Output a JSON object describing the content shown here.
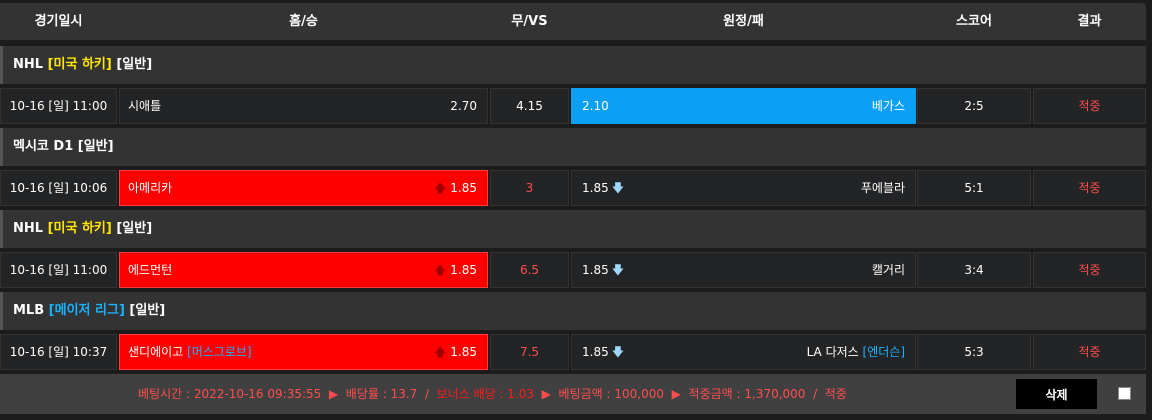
{
  "header": {
    "date": "경기일시",
    "home": "홈/승",
    "draw": "무/VS",
    "away": "원정/패",
    "score": "스코어",
    "result": "결과"
  },
  "colors": {
    "red": "#ff0000",
    "blue": "#0ba0f5",
    "yellow": "#ffe600",
    "cyan": "#1ab2ff",
    "result": "#ff4d4d"
  },
  "matches": [
    {
      "league": {
        "name": "NHL",
        "tag": "[미국 하키]",
        "tag_color": "#ffe600",
        "type": "[일반]"
      },
      "date": "10-16 [일] 11:00",
      "home": "시애틀",
      "home_tag": "",
      "home_odds": "2.70",
      "draw": "4.15",
      "away_odds": "2.10",
      "away": "베가스",
      "away_tag": "",
      "score": "2:5",
      "result": "적중",
      "selected": "away"
    },
    {
      "league": {
        "name": "멕시코 D1",
        "tag": "",
        "tag_color": "",
        "type": "[일반]"
      },
      "date": "10-16 [일] 10:06",
      "home": "아메리카",
      "home_tag": "",
      "home_odds": "1.85",
      "draw": "3",
      "away_odds": "1.85",
      "away": "푸에블라",
      "away_tag": "",
      "score": "5:1",
      "result": "적중",
      "selected": "home"
    },
    {
      "league": {
        "name": "NHL",
        "tag": "[미국 하키]",
        "tag_color": "#ffe600",
        "type": "[일반]"
      },
      "date": "10-16 [일] 11:00",
      "home": "에드먼턴",
      "home_tag": "",
      "home_odds": "1.85",
      "draw": "6.5",
      "away_odds": "1.85",
      "away": "캘거리",
      "away_tag": "",
      "score": "3:4",
      "result": "적중",
      "selected": "home"
    },
    {
      "league": {
        "name": "MLB",
        "tag": "[메이저 리그]",
        "tag_color": "#1ab2ff",
        "type": "[일반]"
      },
      "date": "10-16 [일] 10:37",
      "home": "샌디에이고",
      "home_tag": "[머스그로브]",
      "home_odds": "1.85",
      "draw": "7.5",
      "away_odds": "1.85",
      "away": "LA 다저스",
      "away_tag": "[엔더슨]",
      "score": "5:3",
      "result": "적중",
      "selected": "home"
    }
  ],
  "footer": {
    "bet_time": "베팅시간 : 2022-10-16 09:35:55",
    "odds": "배당률 : 13.7",
    "bonus": "보너스 배당 : 1.03",
    "amount": "베팅금액 : 100,000",
    "win": "적중금액 : 1,370,000",
    "status": "적중",
    "delete_label": "삭제"
  }
}
